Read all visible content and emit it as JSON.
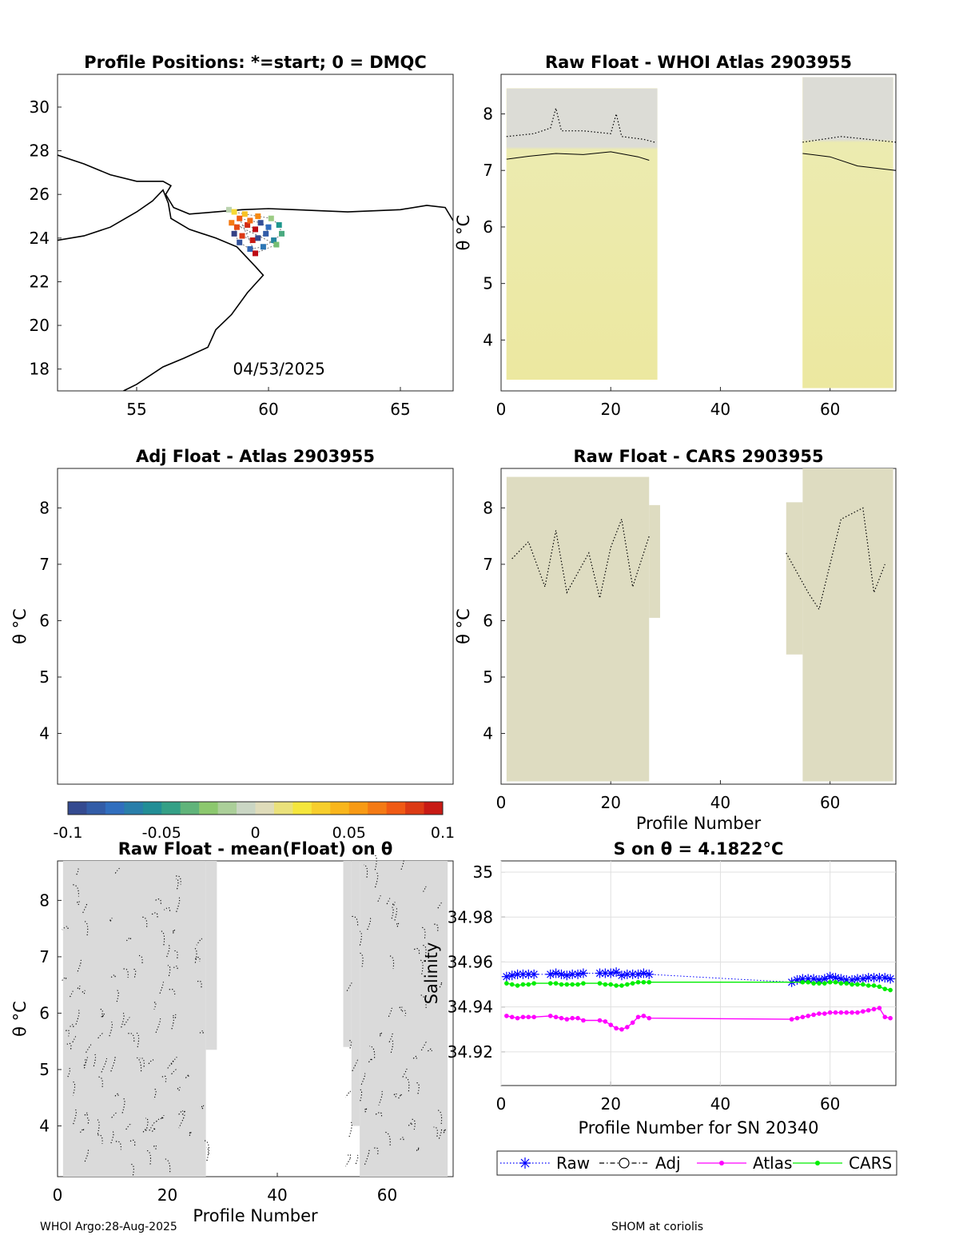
{
  "footer": {
    "left": "WHOI Argo:28-Aug-2025",
    "right": "SHOM at coriolis"
  },
  "chart_data": [
    {
      "id": "map",
      "type": "scatter",
      "title": "Profile Positions: *=start; 0 = DMQC",
      "xlim": [
        52,
        67
      ],
      "ylim": [
        17,
        31.5
      ],
      "xticks": [
        55,
        60,
        65
      ],
      "yticks": [
        18,
        20,
        22,
        24,
        26,
        28,
        30
      ],
      "annotation": "04/53/2025",
      "coast": [
        [
          [
            52,
            27.8
          ],
          [
            53,
            27.4
          ],
          [
            54,
            26.9
          ],
          [
            55,
            26.6
          ],
          [
            56,
            26.6
          ],
          [
            56.3,
            26.4
          ],
          [
            56.1,
            26.0
          ],
          [
            56.4,
            25.4
          ],
          [
            57,
            25.1
          ],
          [
            58,
            25.2
          ],
          [
            59,
            25.3
          ],
          [
            60,
            25.35
          ],
          [
            61,
            25.3
          ],
          [
            62,
            25.25
          ],
          [
            63,
            25.2
          ],
          [
            64,
            25.25
          ],
          [
            65,
            25.3
          ],
          [
            66,
            25.5
          ],
          [
            66.7,
            25.4
          ],
          [
            67,
            24.8
          ]
        ],
        [
          [
            52,
            23.9
          ],
          [
            53,
            24.1
          ],
          [
            54,
            24.5
          ],
          [
            55,
            25.2
          ],
          [
            55.6,
            25.7
          ],
          [
            56,
            26.2
          ],
          [
            56.2,
            25.6
          ],
          [
            56.3,
            24.9
          ],
          [
            57,
            24.4
          ],
          [
            58,
            24.0
          ],
          [
            58.8,
            23.6
          ],
          [
            59.5,
            22.7
          ],
          [
            59.8,
            22.3
          ],
          [
            59.2,
            21.5
          ],
          [
            58.6,
            20.5
          ],
          [
            58,
            19.8
          ],
          [
            57.7,
            19.0
          ],
          [
            56.8,
            18.5
          ],
          [
            56,
            18.1
          ],
          [
            55,
            17.3
          ],
          [
            54.5,
            17.0
          ]
        ]
      ],
      "points": [
        {
          "lon": 58.5,
          "lat": 25.3,
          "c": -0.01
        },
        {
          "lon": 58.7,
          "lat": 25.2,
          "c": 0.03
        },
        {
          "lon": 59.1,
          "lat": 25.1,
          "c": 0.04
        },
        {
          "lon": 59.6,
          "lat": 25.0,
          "c": 0.06
        },
        {
          "lon": 60.1,
          "lat": 24.9,
          "c": -0.02
        },
        {
          "lon": 60.4,
          "lat": 24.6,
          "c": -0.05
        },
        {
          "lon": 60.5,
          "lat": 24.2,
          "c": -0.04
        },
        {
          "lon": 60.2,
          "lat": 23.9,
          "c": -0.06
        },
        {
          "lon": 59.8,
          "lat": 23.6,
          "c": -0.07
        },
        {
          "lon": 59.3,
          "lat": 23.5,
          "c": -0.08
        },
        {
          "lon": 58.9,
          "lat": 23.8,
          "c": -0.09
        },
        {
          "lon": 58.7,
          "lat": 24.2,
          "c": -0.1
        },
        {
          "lon": 58.8,
          "lat": 24.5,
          "c": 0.08
        },
        {
          "lon": 59.2,
          "lat": 24.6,
          "c": 0.09
        },
        {
          "lon": 59.5,
          "lat": 24.4,
          "c": 0.1
        },
        {
          "lon": 59.0,
          "lat": 24.1,
          "c": 0.085
        },
        {
          "lon": 59.4,
          "lat": 23.9,
          "c": 0.095
        },
        {
          "lon": 59.6,
          "lat": 24.0,
          "c": -0.095
        },
        {
          "lon": 59.9,
          "lat": 24.2,
          "c": -0.085
        },
        {
          "lon": 60.0,
          "lat": 24.5,
          "c": -0.075
        },
        {
          "lon": 59.7,
          "lat": 24.7,
          "c": -0.092
        },
        {
          "lon": 59.3,
          "lat": 24.8,
          "c": 0.07
        },
        {
          "lon": 58.9,
          "lat": 24.9,
          "c": 0.075
        },
        {
          "lon": 59.5,
          "lat": 23.3,
          "c": 0.1
        },
        {
          "lon": 60.3,
          "lat": 23.7,
          "c": -0.03
        },
        {
          "lon": 58.6,
          "lat": 24.7,
          "c": 0.065
        }
      ]
    },
    {
      "id": "p2",
      "type": "heatmap",
      "title": "Raw Float - WHOI Atlas  2903955",
      "xlim": [
        0,
        72
      ],
      "ylim": [
        3.1,
        8.7
      ],
      "xticks": [
        0,
        20,
        40,
        60
      ],
      "yticks": [
        4,
        5,
        6,
        7,
        8
      ],
      "ylabel": "θ °C",
      "xlabel": "",
      "fill_value": 0.026,
      "contour_solid": [
        [
          1,
          7.2
        ],
        [
          5,
          7.25
        ],
        [
          10,
          7.3
        ],
        [
          15,
          7.28
        ],
        [
          20,
          7.33
        ],
        [
          25,
          7.24
        ],
        [
          27,
          7.18
        ],
        [
          55,
          7.3
        ],
        [
          60,
          7.24
        ],
        [
          65,
          7.08
        ],
        [
          72,
          7.0
        ]
      ],
      "contour_dotted": [
        [
          1,
          7.6
        ],
        [
          6,
          7.65
        ],
        [
          9,
          7.75
        ],
        [
          10,
          8.1
        ],
        [
          11,
          7.7
        ],
        [
          15,
          7.7
        ],
        [
          20,
          7.65
        ],
        [
          21,
          8.0
        ],
        [
          22,
          7.6
        ],
        [
          26,
          7.55
        ],
        [
          28,
          7.5
        ],
        [
          55,
          7.5
        ],
        [
          62,
          7.6
        ],
        [
          72,
          7.5
        ]
      ]
    },
    {
      "id": "p3",
      "type": "heatmap",
      "title": "Adj Float - Atlas  2903955",
      "xlim": [
        0,
        72
      ],
      "ylim": [
        3.1,
        8.7
      ],
      "xticks": [],
      "yticks": [
        4,
        5,
        6,
        7,
        8
      ],
      "ylabel": "θ °C",
      "xlabel": ""
    },
    {
      "id": "p4",
      "type": "heatmap",
      "title": "Raw Float - CARS  2903955",
      "xlim": [
        0,
        72
      ],
      "ylim": [
        3.1,
        8.7
      ],
      "xticks": [
        0,
        20,
        40,
        60
      ],
      "yticks": [
        4,
        5,
        6,
        7,
        8
      ],
      "ylabel": "θ °C",
      "xlabel": "Profile Number",
      "fill_value": 0.004,
      "contour_dotted": [
        [
          2,
          7.1
        ],
        [
          5,
          7.4
        ],
        [
          8,
          6.6
        ],
        [
          10,
          7.6
        ],
        [
          12,
          6.5
        ],
        [
          16,
          7.2
        ],
        [
          18,
          6.4
        ],
        [
          20,
          7.3
        ],
        [
          22,
          7.8
        ],
        [
          24,
          6.6
        ],
        [
          27,
          7.5
        ],
        [
          52,
          7.2
        ],
        [
          56,
          6.5
        ],
        [
          58,
          6.2
        ],
        [
          62,
          7.8
        ],
        [
          66,
          8.0
        ],
        [
          68,
          6.5
        ],
        [
          70,
          7.0
        ]
      ]
    },
    {
      "id": "p5",
      "type": "heatmap",
      "title": "Raw Float - mean(Float) on θ",
      "xlim": [
        0,
        72
      ],
      "ylim": [
        3.1,
        8.7
      ],
      "xticks": [
        0,
        20,
        40,
        60
      ],
      "yticks": [
        4,
        5,
        6,
        7,
        8
      ],
      "ylabel": "θ °C",
      "xlabel": "Profile Number",
      "fill_value": 0.0
    },
    {
      "id": "p6",
      "type": "line",
      "title": "S on θ = 4.1822°C",
      "xlabel": "Profile Number for SN 20340",
      "ylabel": "Salinity",
      "xlim": [
        0,
        72
      ],
      "ylim": [
        34.905,
        35.005
      ],
      "xticks": [
        0,
        20,
        40,
        60
      ],
      "yticks": [
        34.92,
        34.94,
        34.96,
        34.98,
        35
      ],
      "ytick_labels": [
        "34.92",
        "34.94",
        "34.96",
        "34.98",
        "35"
      ],
      "legend": [
        "Raw",
        "Adj",
        "Atlas",
        "CARS"
      ],
      "series": [
        {
          "name": "Raw",
          "color": "#0000ff",
          "marker": "star",
          "x": [
            1,
            2,
            3,
            4,
            5,
            6,
            9,
            10,
            11,
            12,
            13,
            14,
            15,
            18,
            19,
            20,
            21,
            22,
            23,
            24,
            25,
            26,
            27,
            53,
            54,
            55,
            56,
            57,
            58,
            59,
            60,
            61,
            62,
            63,
            64,
            65,
            66,
            67,
            68,
            69,
            70,
            71
          ],
          "y": [
            34.9535,
            34.954,
            34.9545,
            34.9545,
            34.9545,
            34.9545,
            34.9545,
            34.955,
            34.9545,
            34.954,
            34.9545,
            34.9545,
            34.955,
            34.955,
            34.955,
            34.955,
            34.9555,
            34.954,
            34.9545,
            34.9545,
            34.9545,
            34.955,
            34.9545,
            34.951,
            34.952,
            34.9525,
            34.9525,
            34.9525,
            34.952,
            34.9525,
            34.9535,
            34.953,
            34.9525,
            34.952,
            34.952,
            34.9525,
            34.9525,
            34.953,
            34.953,
            34.953,
            34.953,
            34.9525
          ]
        },
        {
          "name": "Atlas",
          "color": "#ff00ff",
          "marker": "dot",
          "x": [
            1,
            2,
            3,
            4,
            5,
            6,
            9,
            10,
            11,
            12,
            13,
            14,
            15,
            18,
            19,
            20,
            21,
            22,
            23,
            24,
            25,
            26,
            27,
            53,
            54,
            55,
            56,
            57,
            58,
            59,
            60,
            61,
            62,
            63,
            64,
            65,
            66,
            67,
            68,
            69,
            70,
            71
          ],
          "y": [
            34.936,
            34.9355,
            34.935,
            34.9355,
            34.9355,
            34.9355,
            34.936,
            34.9355,
            34.935,
            34.9345,
            34.935,
            34.935,
            34.934,
            34.934,
            34.9335,
            34.932,
            34.9305,
            34.93,
            34.931,
            34.933,
            34.9355,
            34.936,
            34.935,
            34.9345,
            34.935,
            34.9355,
            34.936,
            34.9365,
            34.937,
            34.937,
            34.9375,
            34.9375,
            34.9375,
            34.9375,
            34.9375,
            34.9375,
            34.938,
            34.9385,
            34.939,
            34.9395,
            34.9355,
            34.935
          ]
        },
        {
          "name": "CARS",
          "color": "#00ee00",
          "marker": "dot",
          "x": [
            1,
            2,
            3,
            4,
            5,
            6,
            9,
            10,
            11,
            12,
            13,
            14,
            15,
            18,
            19,
            20,
            21,
            22,
            23,
            24,
            25,
            26,
            27,
            55,
            56,
            57,
            58,
            59,
            60,
            61,
            62,
            63,
            64,
            65,
            66,
            67,
            68,
            69,
            70,
            71
          ],
          "y": [
            34.9505,
            34.95,
            34.9495,
            34.95,
            34.95,
            34.9505,
            34.9505,
            34.9505,
            34.95,
            34.95,
            34.95,
            34.95,
            34.9505,
            34.9505,
            34.95,
            34.95,
            34.9495,
            34.9495,
            34.95,
            34.9505,
            34.951,
            34.951,
            34.951,
            34.951,
            34.951,
            34.9505,
            34.9505,
            34.9505,
            34.951,
            34.951,
            34.9505,
            34.9505,
            34.95,
            34.95,
            34.95,
            34.9495,
            34.9495,
            34.949,
            34.948,
            34.9475
          ]
        }
      ]
    }
  ],
  "colorbar": {
    "min": -0.1,
    "max": 0.1,
    "tick_labels": [
      "-0.1",
      "-0.05",
      "0",
      "0.05",
      "0.1"
    ]
  }
}
